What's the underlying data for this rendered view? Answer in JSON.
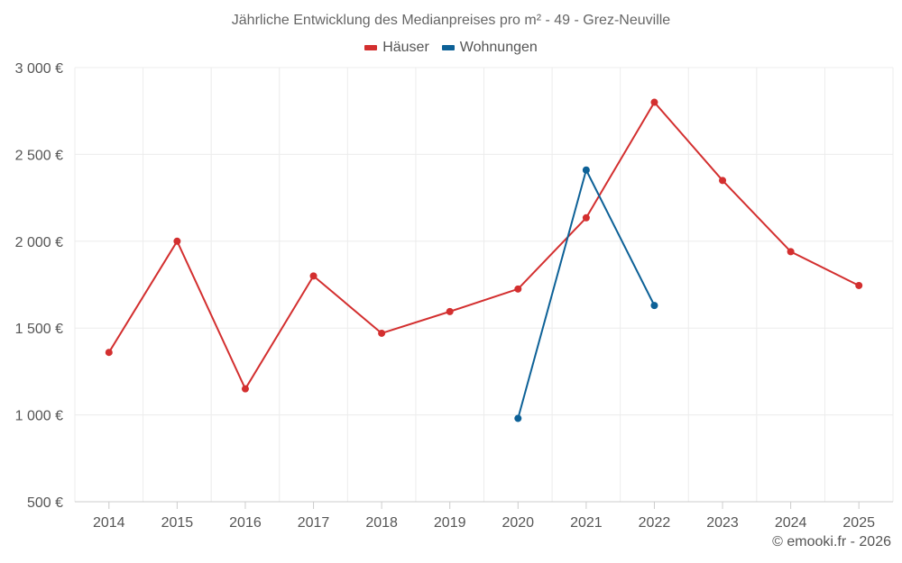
{
  "chart_data": {
    "type": "line",
    "title": "Jährliche Entwicklung des Medianpreises pro m² - 49 - Grez-Neuville",
    "categories": [
      "2014",
      "2015",
      "2016",
      "2017",
      "2018",
      "2019",
      "2020",
      "2021",
      "2022",
      "2023",
      "2024",
      "2025"
    ],
    "ylim": [
      500,
      3000
    ],
    "yticks": [
      500,
      1000,
      1500,
      2000,
      2500,
      3000
    ],
    "ytick_labels": [
      "500 €",
      "1 000 €",
      "1 500 €",
      "2 000 €",
      "2 500 €",
      "3 000 €"
    ],
    "xlabel": "",
    "ylabel": "",
    "grid": true,
    "legend_position": "top-center",
    "series": [
      {
        "name": "Häuser",
        "color": "#d32f2f",
        "values": [
          1360,
          2000,
          1150,
          1800,
          1470,
          1595,
          1725,
          2135,
          2800,
          2350,
          1940,
          1745
        ]
      },
      {
        "name": "Wohnungen",
        "color": "#0d6197",
        "values": [
          null,
          null,
          null,
          null,
          null,
          null,
          980,
          2410,
          1630,
          null,
          null,
          null
        ]
      }
    ]
  },
  "footer": {
    "copyright": "© emooki.fr - 2026"
  }
}
